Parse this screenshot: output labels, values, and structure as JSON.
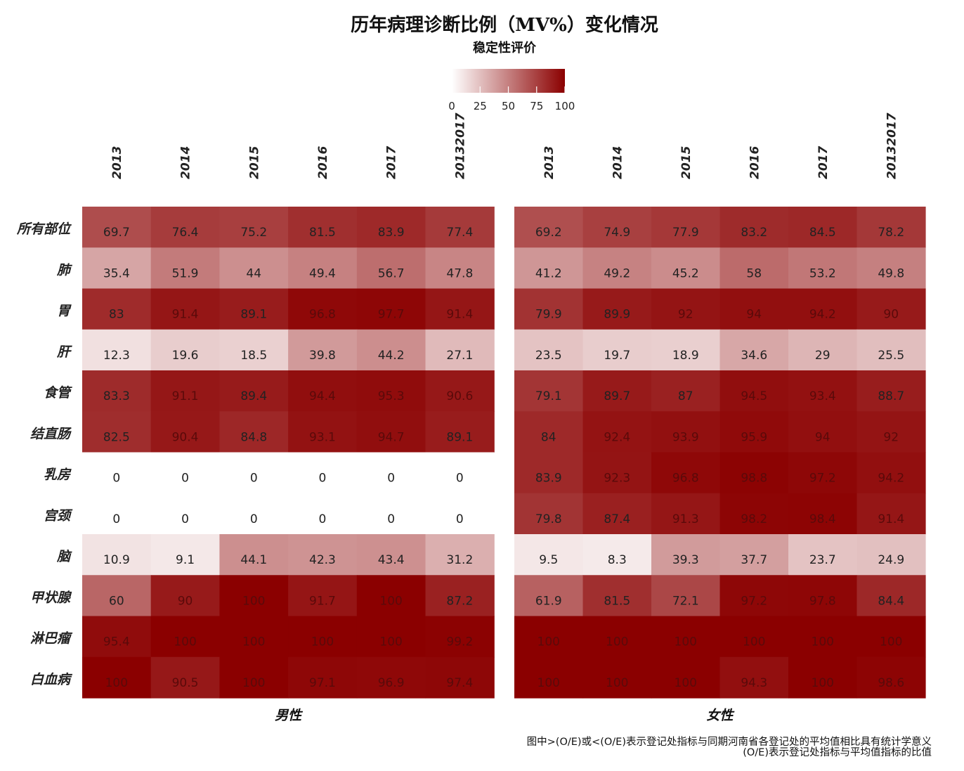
{
  "chart_data": {
    "type": "heatmap",
    "title": "历年病理诊断比例（MV%）变化情况",
    "legend": {
      "title": "稳定性评价",
      "ticks": [
        0,
        25,
        50,
        75,
        100
      ],
      "range": [
        0,
        100
      ],
      "colors": [
        "#ffffff",
        "#8b0000"
      ],
      "placement": "top"
    },
    "columns": [
      "2013",
      "2014",
      "2015",
      "2016",
      "2017",
      "20132017"
    ],
    "rows": [
      "所有部位",
      "肺",
      "胃",
      "肝",
      "食管",
      "结直肠",
      "乳房",
      "宫颈",
      "脑",
      "甲状腺",
      "淋巴瘤",
      "白血病"
    ],
    "panels": [
      {
        "name": "男性",
        "values": [
          [
            69.7,
            76.4,
            75.2,
            81.5,
            83.9,
            77.4
          ],
          [
            35.4,
            51.9,
            44,
            49.4,
            56.7,
            47.8
          ],
          [
            83,
            91.4,
            89.1,
            96.8,
            97.7,
            91.4
          ],
          [
            12.3,
            19.6,
            18.5,
            39.8,
            44.2,
            27.1
          ],
          [
            83.3,
            91.1,
            89.4,
            94.4,
            95.3,
            90.6
          ],
          [
            82.5,
            90.4,
            84.8,
            93.1,
            94.7,
            89.1
          ],
          [
            0,
            0,
            0,
            0,
            0,
            0
          ],
          [
            0,
            0,
            0,
            0,
            0,
            0
          ],
          [
            10.9,
            9.1,
            44.1,
            42.3,
            43.4,
            31.2
          ],
          [
            60,
            90,
            100,
            91.7,
            100,
            87.2
          ],
          [
            95.4,
            100,
            100,
            100,
            100,
            99.2
          ],
          [
            100,
            90.5,
            100,
            97.1,
            96.9,
            97.4
          ]
        ]
      },
      {
        "name": "女性",
        "values": [
          [
            69.2,
            74.9,
            77.9,
            83.2,
            84.5,
            78.2
          ],
          [
            41.2,
            49.2,
            45.2,
            58,
            53.2,
            49.8
          ],
          [
            79.9,
            89.9,
            92,
            94,
            94.2,
            90
          ],
          [
            23.5,
            19.7,
            18.9,
            34.6,
            29,
            25.5
          ],
          [
            79.1,
            89.7,
            87,
            94.5,
            93.4,
            88.7
          ],
          [
            84,
            92.4,
            93.9,
            95.9,
            94,
            92
          ],
          [
            83.9,
            92.3,
            96.8,
            98.8,
            97.2,
            94.2
          ],
          [
            79.8,
            87.4,
            91.3,
            98.2,
            98.4,
            91.4
          ],
          [
            9.5,
            8.3,
            39.3,
            37.7,
            23.7,
            24.9
          ],
          [
            61.9,
            81.5,
            72.1,
            97.2,
            97.8,
            84.4
          ],
          [
            100,
            100,
            100,
            100,
            100,
            100
          ],
          [
            100,
            100,
            100,
            94.3,
            100,
            98.6
          ]
        ]
      }
    ],
    "notes": [
      "图中>(O/E)或<(O/E)表示登记处指标与同期河南省各登记处的平均值相比具有统计学意义",
      "(O/E)表示登记处指标与平均值指标的比值"
    ]
  }
}
